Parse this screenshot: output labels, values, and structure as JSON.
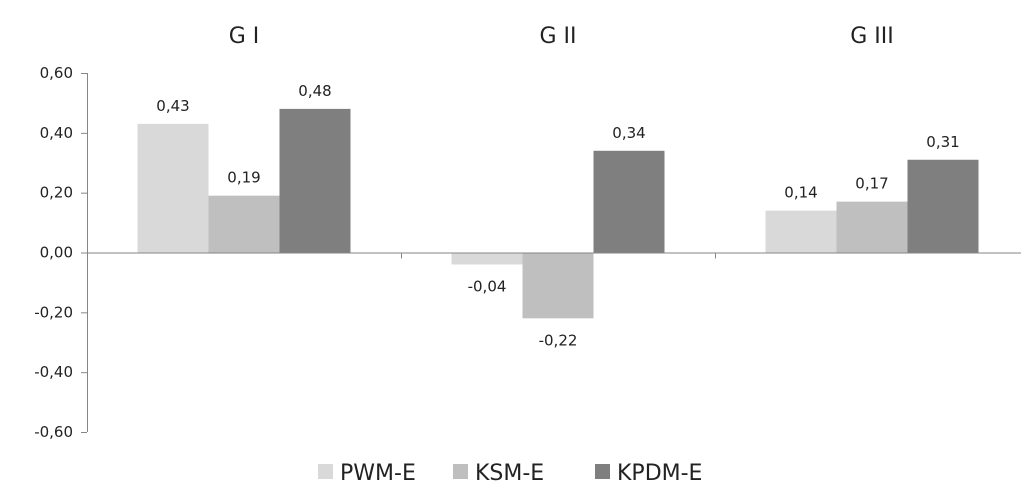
{
  "chart_data": {
    "type": "bar",
    "categories": [
      "G I",
      "G II",
      "G III"
    ],
    "series": [
      {
        "name": "PWM-E",
        "values": [
          0.43,
          -0.04,
          0.14
        ]
      },
      {
        "name": "KSM-E",
        "values": [
          0.19,
          -0.22,
          0.17
        ]
      },
      {
        "name": "KPDM-E",
        "values": [
          0.48,
          0.34,
          0.31
        ]
      }
    ],
    "data_labels": [
      [
        "0,43",
        "-0,04",
        "0,14"
      ],
      [
        "0,19",
        "-0,22",
        "0,17"
      ],
      [
        "0,48",
        "0,34",
        "0,31"
      ]
    ],
    "yticks": [
      0.6,
      0.4,
      0.2,
      0.0,
      -0.2,
      -0.4,
      -0.6
    ],
    "ytick_labels": [
      "0,60",
      "0,40",
      "0,20",
      "0,00",
      "-0,20",
      "-0,40",
      "-0,60"
    ],
    "ylim": [
      -0.6,
      0.6
    ],
    "grid": false,
    "category_labels_position": "top",
    "legend_position": "bottom-center",
    "colors": [
      "#d9d9d9",
      "#bfbfbf",
      "#7f7f7f"
    ]
  }
}
